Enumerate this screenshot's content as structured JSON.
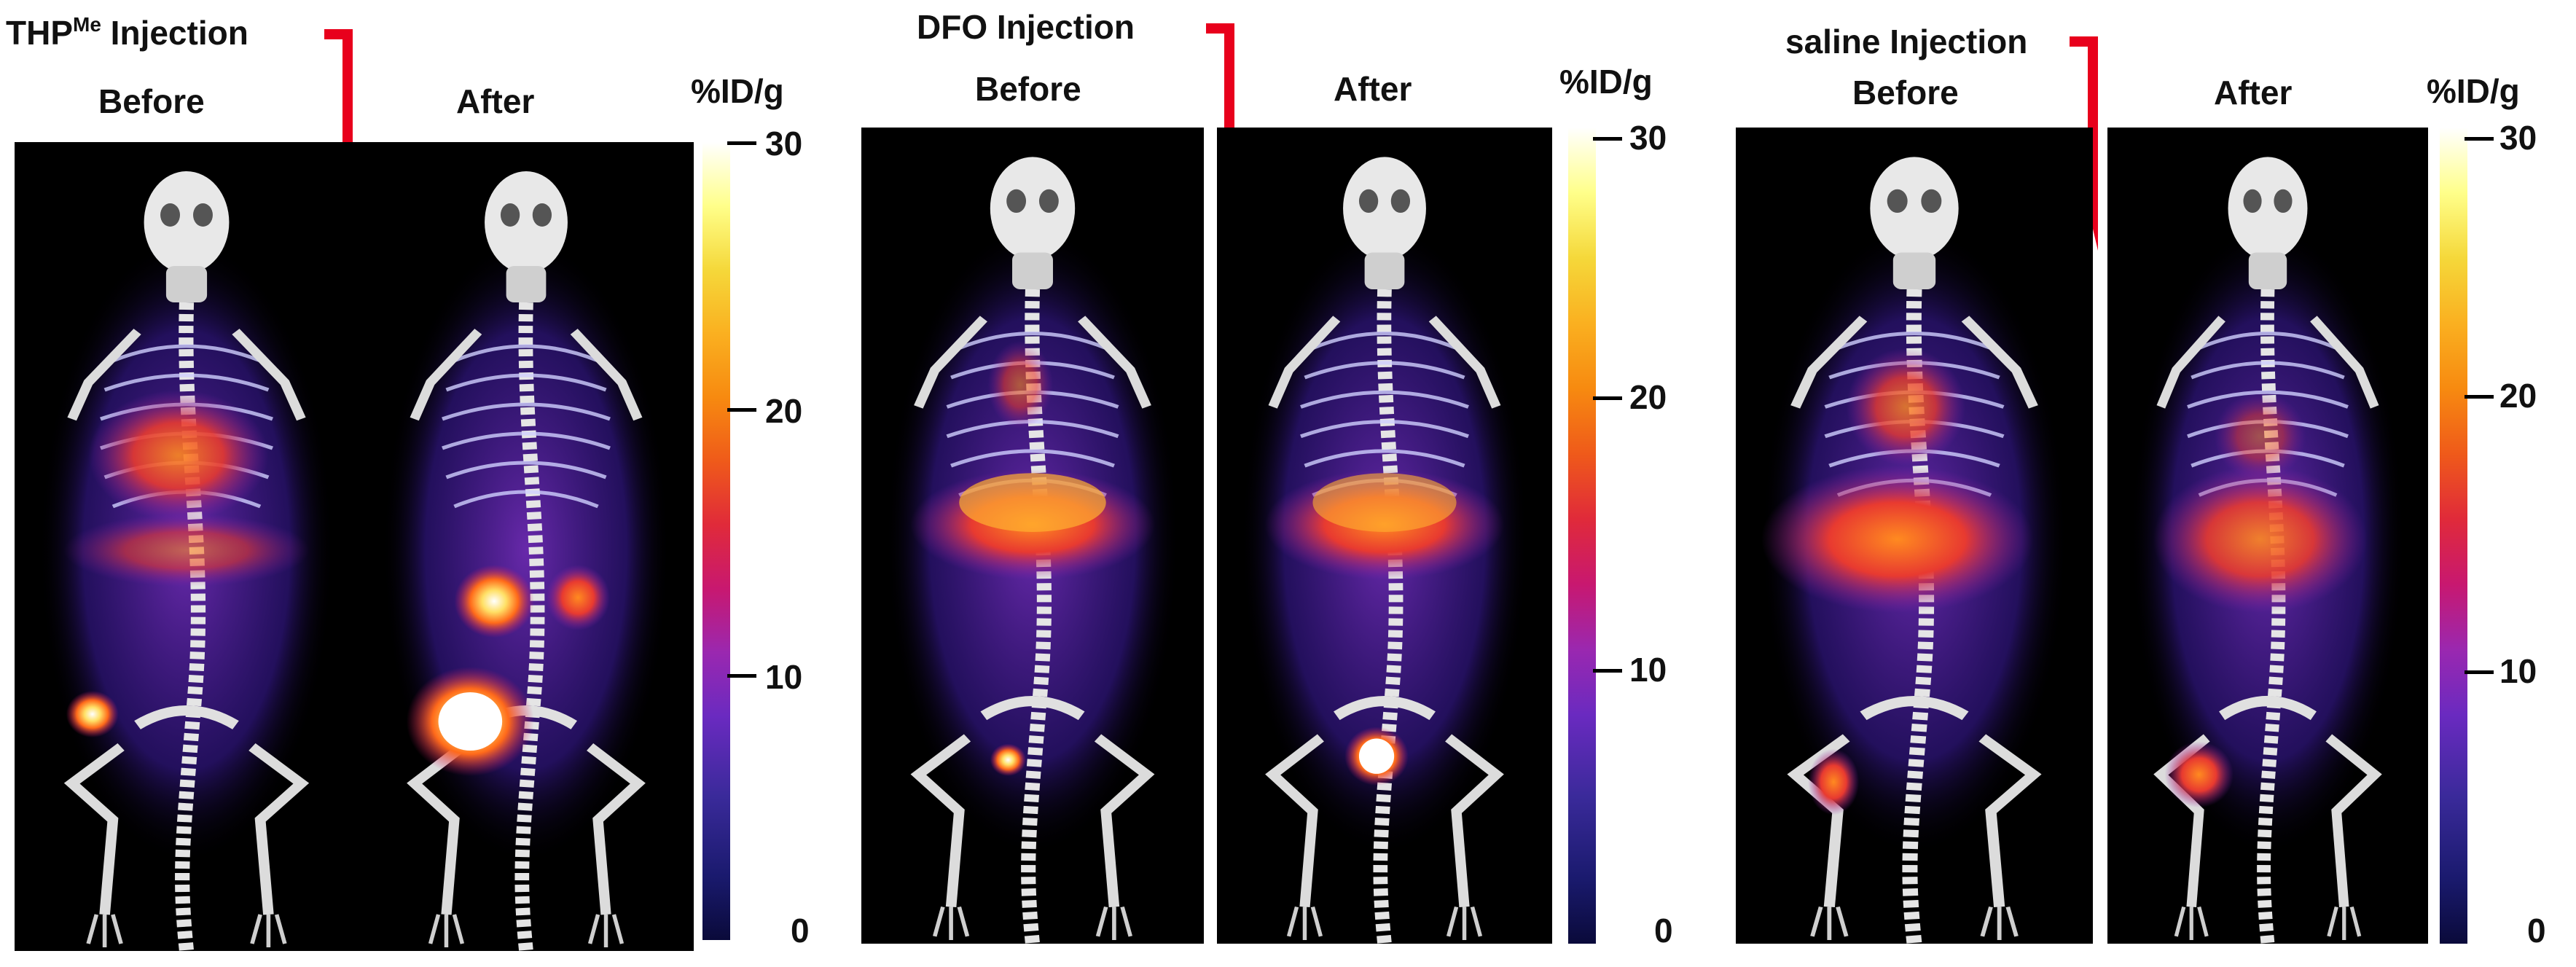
{
  "panels": [
    {
      "heading_main": "THP",
      "heading_sup": "Me",
      "heading_rest": " Injection",
      "before_label": "Before",
      "after_label": "After",
      "colorbar_title": "%ID/g",
      "ticks": [
        "30",
        "20",
        "10",
        "0"
      ]
    },
    {
      "heading_main": "DFO Injection",
      "heading_sup": "",
      "heading_rest": "",
      "before_label": "Before",
      "after_label": "After",
      "colorbar_title": "%ID/g",
      "ticks": [
        "30",
        "20",
        "10",
        "0"
      ]
    },
    {
      "heading_main": "saline Injection",
      "heading_sup": "",
      "heading_rest": "",
      "before_label": "Before",
      "after_label": "After",
      "colorbar_title": "%ID/g",
      "ticks": [
        "30",
        "20",
        "10",
        "0"
      ]
    }
  ],
  "colors": {
    "arrow": "#e8001c",
    "scan_background": "#000000"
  }
}
